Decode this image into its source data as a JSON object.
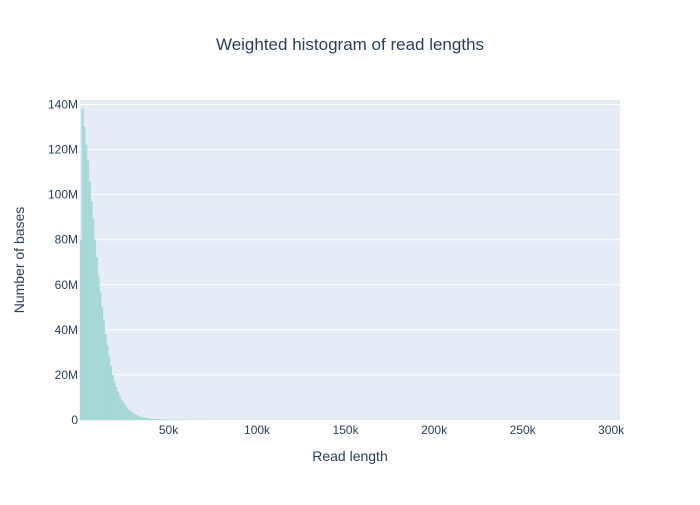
{
  "chart_data": {
    "type": "bar",
    "title": "Weighted histogram of read lengths",
    "xlabel": "Read length",
    "ylabel": "Number of bases",
    "xlim": [
      0,
      305000
    ],
    "ylim": [
      0,
      142000000
    ],
    "x_ticks": [
      {
        "value": 50000,
        "label": "50k"
      },
      {
        "value": 100000,
        "label": "100k"
      },
      {
        "value": 150000,
        "label": "150k"
      },
      {
        "value": 200000,
        "label": "200k"
      },
      {
        "value": 250000,
        "label": "250k"
      },
      {
        "value": 300000,
        "label": "300k"
      }
    ],
    "y_ticks": [
      {
        "value": 0,
        "label": "0"
      },
      {
        "value": 20000000,
        "label": "20M"
      },
      {
        "value": 40000000,
        "label": "40M"
      },
      {
        "value": 60000000,
        "label": "60M"
      },
      {
        "value": 80000000,
        "label": "80M"
      },
      {
        "value": 100000000,
        "label": "100M"
      },
      {
        "value": 120000000,
        "label": "120M"
      },
      {
        "value": 140000000,
        "label": "140M"
      }
    ],
    "bin_width": 1000,
    "x": [
      500,
      1500,
      2500,
      3500,
      4500,
      5500,
      6500,
      7500,
      8500,
      9500,
      10500,
      11500,
      12500,
      13500,
      14500,
      15500,
      16500,
      17500,
      18500,
      19500,
      20500,
      21500,
      22500,
      23500,
      24500,
      25500,
      26500,
      27500,
      28500,
      29500,
      30500,
      31500,
      32500,
      33500,
      34500,
      35500,
      36500,
      37500,
      38500,
      39500,
      40500,
      41500,
      42500,
      43500,
      44500,
      45500,
      46500,
      47500,
      48500,
      49500,
      50500,
      51500,
      52500,
      53500,
      54500,
      55500,
      56500,
      57500,
      58500,
      59500,
      60500,
      62500,
      64500,
      66500,
      68500,
      70500,
      75500,
      80500,
      90500,
      100500
    ],
    "values": [
      80000000,
      138000000,
      130000000,
      122000000,
      115000000,
      106000000,
      97000000,
      89000000,
      80000000,
      72000000,
      64000000,
      57000000,
      50000000,
      44000000,
      38000000,
      33000000,
      28000000,
      24000000,
      20000000,
      17000000,
      14500000,
      12500000,
      10500000,
      9000000,
      7700000,
      6500000,
      5500000,
      4600000,
      3900000,
      3300000,
      2800000,
      2300000,
      1900000,
      1600000,
      1300000,
      1100000,
      900000,
      750000,
      620000,
      510000,
      420000,
      350000,
      290000,
      240000,
      200000,
      165000,
      135000,
      110000,
      90000,
      75000,
      60000,
      50000,
      40000,
      33000,
      27000,
      22000,
      18000,
      15000,
      12000,
      10000,
      8000,
      6000,
      4500,
      3500,
      2500,
      2000,
      1200,
      800,
      400,
      150
    ],
    "colors": {
      "bar": "#a8dad7",
      "plot_bg": "#e5ecf6",
      "grid": "#ffffff",
      "text": "#2a3f5f"
    },
    "grid": true,
    "legend": "none"
  }
}
